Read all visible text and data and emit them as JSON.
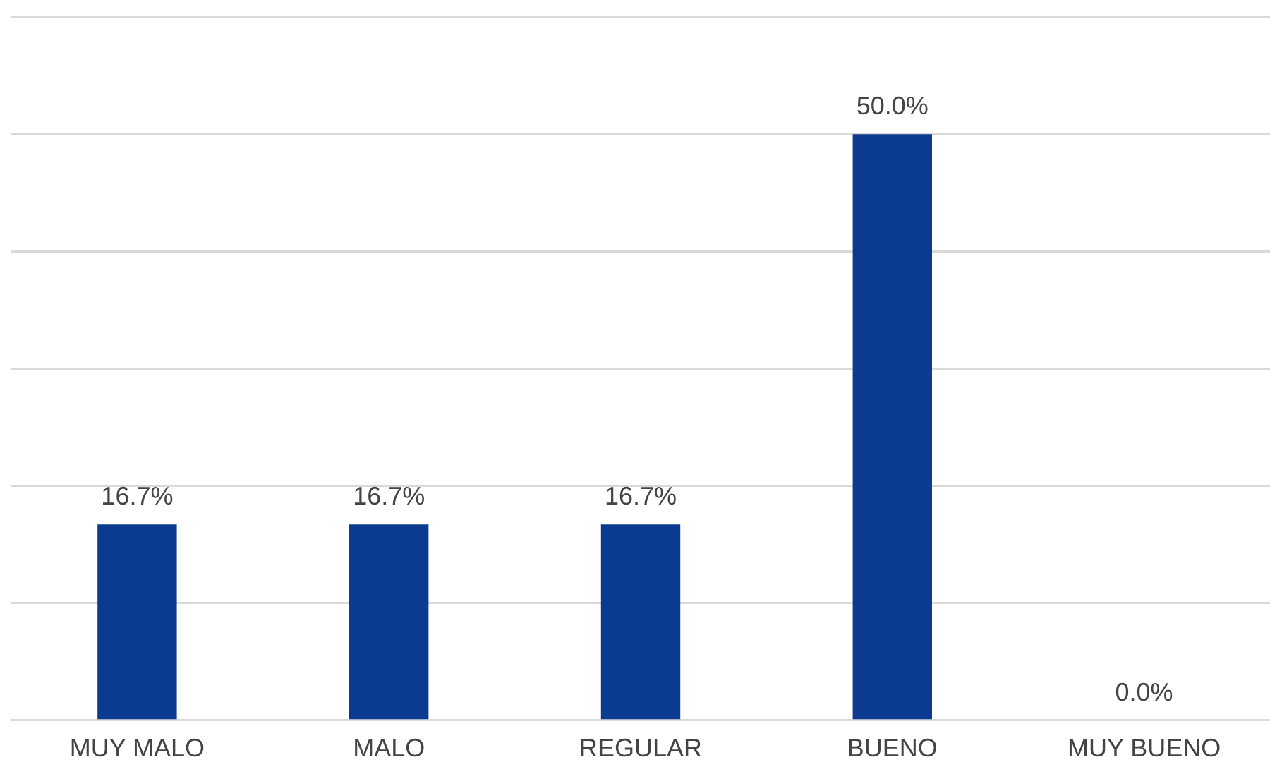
{
  "chart_data": {
    "type": "bar",
    "categories": [
      "MUY MALO",
      "MALO",
      "REGULAR",
      "BUENO",
      "MUY BUENO"
    ],
    "values": [
      16.7,
      16.7,
      16.7,
      50.0,
      0.0
    ],
    "value_labels": [
      "16.7%",
      "16.7%",
      "16.7%",
      "50.0%",
      "0.0%"
    ],
    "color": "#0b3b91",
    "ylim": [
      0,
      60
    ],
    "yticks": [
      {
        "value": 0,
        "label": null
      },
      {
        "value": 10,
        "label": null
      },
      {
        "value": 20,
        "label": null
      },
      {
        "value": 30,
        "label": null
      },
      {
        "value": 40,
        "label": null
      },
      {
        "value": 50,
        "label": null
      },
      {
        "value": 60,
        "label": null
      }
    ],
    "tick_labels": "x",
    "grid": "y",
    "legend": false
  }
}
